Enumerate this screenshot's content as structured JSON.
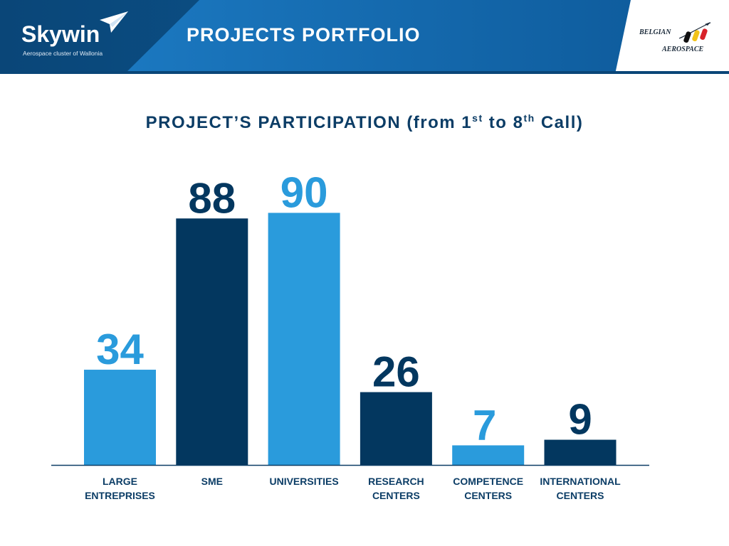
{
  "header": {
    "logo_word": "Skywin",
    "logo_tagline": "Aerospace cluster of Wallonia",
    "title": "PROJECTS PORTFOLIO",
    "partner_line1": "BELGIAN",
    "partner_line2": "AEROSPACE"
  },
  "colors": {
    "header_dark": "#0b4f86",
    "header_light": "#1f7fc8",
    "bar_light": "#2a9bdc",
    "bar_dark": "#03375f",
    "title": "#0c3d66",
    "axis": "#0c3d66"
  },
  "chart_data": {
    "type": "bar",
    "title_parts": {
      "prefix": "PROJECT’S PARTICIPATION (from 1",
      "sup1": "st",
      "middle": " to 8",
      "sup2": "th",
      "suffix": " Call)"
    },
    "categories": [
      "LARGE ENTREPRISES",
      "SME",
      "UNIVERSITIES",
      "RESEARCH CENTERS",
      "COMPETENCE CENTERS",
      "INTERNATIONAL CENTERS"
    ],
    "category_lines": [
      [
        "LARGE",
        "ENTREPRISES"
      ],
      [
        "SME"
      ],
      [
        "UNIVERSITIES"
      ],
      [
        "RESEARCH",
        "CENTERS"
      ],
      [
        "COMPETENCE",
        "CENTERS"
      ],
      [
        "INTERNATIONAL",
        "CENTERS"
      ]
    ],
    "values": [
      34,
      88,
      90,
      26,
      7,
      9
    ],
    "bar_colors": [
      "#2a9bdc",
      "#03375f",
      "#2a9bdc",
      "#03375f",
      "#2a9bdc",
      "#03375f"
    ],
    "grid": false,
    "legend": "none"
  }
}
